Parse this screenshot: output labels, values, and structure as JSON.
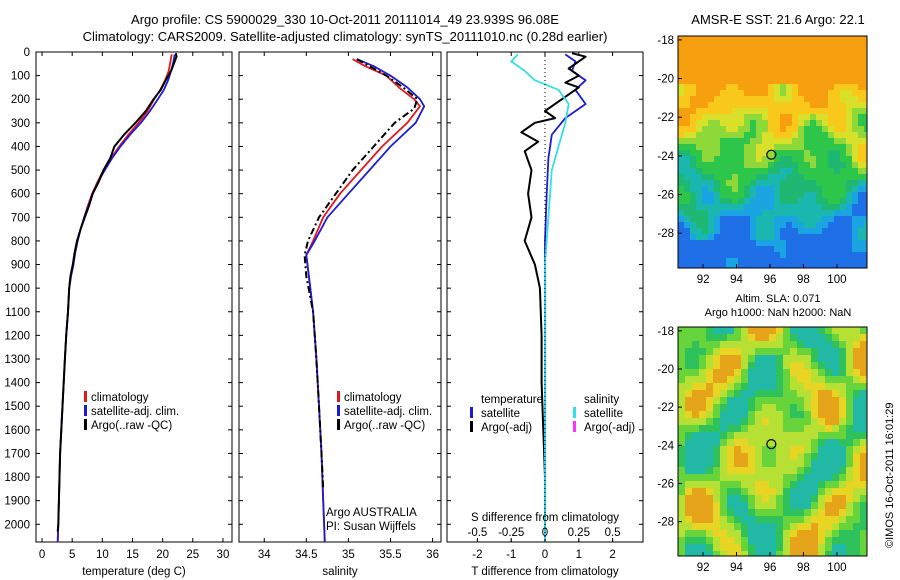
{
  "title": {
    "line1": "Argo profile: CS 5900029_330 10-Oct-2011 20111014_49 23.939S 96.08E",
    "line2": "Climatology: CARS2009. Satellite-adjusted climatology: synTS_20111010.nc (0.28d earlier)"
  },
  "colors": {
    "climatology": "#e3171c",
    "satellite": "#1c1cd6",
    "argo": "#000000",
    "salinity_satellite": "#33e0e8",
    "salinity_argo": "#ff33ff"
  },
  "depth_axis": {
    "ylim": [
      0,
      2075
    ],
    "ticks": [
      0,
      100,
      200,
      300,
      400,
      500,
      600,
      700,
      800,
      900,
      1000,
      1100,
      1200,
      1300,
      1400,
      1500,
      1600,
      1700,
      1800,
      1900,
      2000
    ]
  },
  "chart_data": [
    {
      "type": "line",
      "xlabel": "temperature (deg C)",
      "xlim": [
        -1,
        31.5
      ],
      "xticks": [
        0,
        5,
        10,
        15,
        20,
        25,
        30
      ],
      "legend": {
        "placement": "bottom-middle",
        "entries": [
          "climatology",
          "satellite-adj. clim.",
          "Argo(..raw -QC)"
        ]
      },
      "series": [
        {
          "name": "climatology",
          "color": "#e3171c",
          "points": [
            [
              21.5,
              10
            ],
            [
              21.3,
              40
            ],
            [
              21.0,
              80
            ],
            [
              20.4,
              120
            ],
            [
              19.6,
              160
            ],
            [
              18.6,
              200
            ],
            [
              17.5,
              250
            ],
            [
              16.0,
              300
            ],
            [
              14.3,
              350
            ],
            [
              12.8,
              400
            ],
            [
              11.4,
              450
            ],
            [
              10.2,
              500
            ],
            [
              9.2,
              550
            ],
            [
              8.3,
              600
            ],
            [
              7.6,
              650
            ],
            [
              7.0,
              700
            ],
            [
              6.4,
              750
            ],
            [
              5.9,
              800
            ],
            [
              5.5,
              850
            ],
            [
              5.2,
              900
            ],
            [
              4.8,
              950
            ],
            [
              4.5,
              1000
            ],
            [
              4.3,
              1100
            ],
            [
              4.0,
              1200
            ],
            [
              3.8,
              1300
            ],
            [
              3.6,
              1400
            ],
            [
              3.4,
              1500
            ],
            [
              3.2,
              1600
            ],
            [
              3.0,
              1700
            ],
            [
              2.9,
              1800
            ],
            [
              2.8,
              1900
            ],
            [
              2.7,
              2000
            ],
            [
              2.6,
              2075
            ]
          ]
        },
        {
          "name": "satellite-adj. clim.",
          "color": "#1c1cd6",
          "points": [
            [
              22.0,
              10
            ],
            [
              21.8,
              40
            ],
            [
              21.4,
              80
            ],
            [
              20.9,
              120
            ],
            [
              20.2,
              160
            ],
            [
              19.2,
              200
            ],
            [
              17.9,
              250
            ],
            [
              16.4,
              300
            ],
            [
              14.6,
              350
            ],
            [
              13.0,
              400
            ],
            [
              11.6,
              450
            ],
            [
              10.4,
              500
            ],
            [
              9.3,
              550
            ],
            [
              8.4,
              600
            ],
            [
              7.7,
              650
            ],
            [
              7.0,
              700
            ],
            [
              6.4,
              750
            ],
            [
              5.9,
              800
            ],
            [
              5.5,
              850
            ],
            [
              5.2,
              900
            ],
            [
              4.8,
              950
            ],
            [
              4.5,
              1000
            ],
            [
              4.3,
              1100
            ],
            [
              4.0,
              1200
            ],
            [
              3.8,
              1300
            ],
            [
              3.6,
              1400
            ],
            [
              3.4,
              1500
            ],
            [
              3.2,
              1600
            ],
            [
              3.0,
              1700
            ],
            [
              2.9,
              1800
            ],
            [
              2.8,
              1900
            ],
            [
              2.7,
              2000
            ],
            [
              2.6,
              2075
            ]
          ]
        },
        {
          "name": "Argo(..raw -QC)",
          "color": "#000000",
          "points": [
            [
              22.2,
              5
            ],
            [
              22.3,
              20
            ],
            [
              22.0,
              40
            ],
            [
              21.4,
              80
            ],
            [
              20.5,
              120
            ],
            [
              19.7,
              160
            ],
            [
              18.5,
              200
            ],
            [
              17.2,
              250
            ],
            [
              15.5,
              300
            ],
            [
              13.6,
              350
            ],
            [
              12.0,
              400
            ],
            [
              11.3,
              450
            ],
            [
              10.2,
              500
            ],
            [
              9.4,
              550
            ],
            [
              8.4,
              600
            ],
            [
              7.8,
              650
            ],
            [
              7.1,
              700
            ],
            [
              6.4,
              750
            ],
            [
              5.8,
              800
            ],
            [
              5.4,
              850
            ],
            [
              5.1,
              900
            ],
            [
              4.7,
              950
            ],
            [
              4.5,
              1000
            ],
            [
              4.3,
              1100
            ],
            [
              4.0,
              1200
            ],
            [
              3.8,
              1300
            ],
            [
              3.6,
              1400
            ],
            [
              3.4,
              1500
            ],
            [
              3.2,
              1600
            ],
            [
              3.0,
              1700
            ],
            [
              2.9,
              1800
            ],
            [
              2.8,
              1900
            ],
            [
              2.7,
              2000
            ],
            [
              2.6,
              2030
            ]
          ]
        }
      ]
    },
    {
      "type": "line",
      "xlabel": "salinity",
      "xlim": [
        33.7,
        36.1
      ],
      "xticks": [
        34,
        34.5,
        35,
        35.5,
        36
      ],
      "legend": {
        "placement": "bottom-middle",
        "entries": [
          "climatology",
          "satellite-adj. clim.",
          "Argo(..raw -QC)"
        ]
      },
      "annotation": [
        "Argo AUSTRALIA",
        "PI: Susan Wijffels"
      ],
      "series": [
        {
          "name": "climatology",
          "color": "#e3171c",
          "points": [
            [
              35.05,
              30
            ],
            [
              35.2,
              60
            ],
            [
              35.45,
              100
            ],
            [
              35.6,
              150
            ],
            [
              35.78,
              200
            ],
            [
              35.85,
              230
            ],
            [
              35.7,
              300
            ],
            [
              35.4,
              400
            ],
            [
              35.15,
              500
            ],
            [
              34.9,
              600
            ],
            [
              34.7,
              700
            ],
            [
              34.58,
              800
            ],
            [
              34.5,
              860
            ],
            [
              34.53,
              950
            ],
            [
              34.58,
              1100
            ],
            [
              34.62,
              1300
            ],
            [
              34.65,
              1500
            ],
            [
              34.68,
              1700
            ],
            [
              34.7,
              1900
            ],
            [
              34.72,
              2075
            ]
          ]
        },
        {
          "name": "satellite-adj. clim.",
          "color": "#1c1cd6",
          "points": [
            [
              35.1,
              30
            ],
            [
              35.3,
              60
            ],
            [
              35.5,
              100
            ],
            [
              35.7,
              150
            ],
            [
              35.85,
              200
            ],
            [
              35.9,
              230
            ],
            [
              35.8,
              300
            ],
            [
              35.5,
              400
            ],
            [
              35.25,
              500
            ],
            [
              35.0,
              600
            ],
            [
              34.75,
              700
            ],
            [
              34.6,
              800
            ],
            [
              34.5,
              860
            ],
            [
              34.53,
              950
            ],
            [
              34.58,
              1100
            ],
            [
              34.62,
              1300
            ],
            [
              34.65,
              1500
            ],
            [
              34.68,
              1700
            ],
            [
              34.7,
              1900
            ],
            [
              34.72,
              2075
            ]
          ]
        },
        {
          "name": "Argo(..raw -QC)",
          "color": "#000000",
          "points": [
            [
              35.1,
              30
            ],
            [
              35.25,
              60
            ],
            [
              35.45,
              100
            ],
            [
              35.65,
              150
            ],
            [
              35.82,
              200
            ],
            [
              35.78,
              240
            ],
            [
              35.55,
              300
            ],
            [
              35.3,
              400
            ],
            [
              35.05,
              500
            ],
            [
              34.85,
              600
            ],
            [
              34.65,
              700
            ],
            [
              34.52,
              800
            ],
            [
              34.48,
              860
            ],
            [
              34.5,
              950
            ],
            [
              34.58,
              1100
            ],
            [
              34.62,
              1300
            ],
            [
              34.65,
              1500
            ],
            [
              34.68,
              1700
            ],
            [
              34.7,
              1850
            ]
          ]
        }
      ]
    },
    {
      "type": "line",
      "xlabel": "T difference from climatology",
      "xlim": [
        -2.9,
        2.9
      ],
      "xticks": [
        -2,
        -1,
        0,
        1,
        2
      ],
      "secondary_axis": {
        "label": "S difference from climatology",
        "ticks": [
          -0.5,
          -0.25,
          0,
          0.25,
          0.5
        ]
      },
      "legend": {
        "placement": "bottom",
        "entries": [
          "temperature",
          "satellite",
          "Argo(-adj)",
          "salinity",
          "satellite",
          "Argo(-adj)"
        ]
      },
      "series": [
        {
          "name": "satellite",
          "color": "#1c1cd6",
          "points": [
            [
              0.6,
              10
            ],
            [
              0.9,
              40
            ],
            [
              0.8,
              80
            ],
            [
              1.2,
              120
            ],
            [
              0.9,
              160
            ],
            [
              1.2,
              220
            ],
            [
              0.6,
              280
            ],
            [
              0.2,
              350
            ],
            [
              0.1,
              450
            ],
            [
              0.05,
              600
            ],
            [
              0.0,
              800
            ],
            [
              0.0,
              1100
            ],
            [
              0.0,
              1500
            ],
            [
              0.0,
              2075
            ]
          ]
        },
        {
          "name": "Argo(-adj)",
          "color": "#000000",
          "points": [
            [
              0.8,
              5
            ],
            [
              1.2,
              20
            ],
            [
              1.0,
              40
            ],
            [
              0.7,
              70
            ],
            [
              1.0,
              100
            ],
            [
              0.6,
              130
            ],
            [
              1.0,
              150
            ],
            [
              0.5,
              200
            ],
            [
              0.0,
              250
            ],
            [
              0.3,
              280
            ],
            [
              -0.3,
              300
            ],
            [
              -0.7,
              340
            ],
            [
              -0.2,
              380
            ],
            [
              -0.6,
              420
            ],
            [
              -0.4,
              500
            ],
            [
              -0.5,
              600
            ],
            [
              -0.4,
              700
            ],
            [
              -0.6,
              800
            ],
            [
              -0.3,
              900
            ],
            [
              -0.15,
              1000
            ],
            [
              -0.1,
              1200
            ],
            [
              -0.1,
              1400
            ],
            [
              -0.05,
              1600
            ],
            [
              0.0,
              1800
            ],
            [
              0.0,
              2030
            ]
          ]
        },
        {
          "name": "salinity satellite",
          "color": "#33e0e8",
          "points": [
            [
              -0.8,
              10
            ],
            [
              -1.0,
              40
            ],
            [
              -0.6,
              80
            ],
            [
              -0.3,
              120
            ],
            [
              0.4,
              160
            ],
            [
              0.7,
              220
            ],
            [
              0.6,
              300
            ],
            [
              0.4,
              400
            ],
            [
              0.2,
              500
            ],
            [
              0.1,
              700
            ],
            [
              0.0,
              900
            ],
            [
              0.0,
              1200
            ],
            [
              0.0,
              1500
            ],
            [
              0.0,
              2075
            ]
          ]
        }
      ]
    }
  ],
  "maps": [
    {
      "title": "AMSR-E SST: 21.6 Argo: 22.1",
      "xticks": [
        92,
        94,
        96,
        98,
        100
      ],
      "yticks": [
        -18,
        -20,
        -22,
        -24,
        -26,
        -28
      ],
      "xlim": [
        90.5,
        101.8
      ],
      "ylim": [
        -29.8,
        -17.8
      ],
      "marker": [
        96.08,
        -23.939
      ]
    },
    {
      "title_lines": [
        "Altim. SLA: 0.071",
        "Argo h1000: NaN h2000: NaN"
      ],
      "xticks": [
        92,
        94,
        96,
        98,
        100
      ],
      "yticks": [
        -18,
        -20,
        -22,
        -24,
        -26,
        -28
      ],
      "xlim": [
        90.5,
        101.8
      ],
      "ylim": [
        -29.8,
        -17.8
      ],
      "marker": [
        96.08,
        -23.939
      ]
    }
  ],
  "footer": "©IMOS 16-Oct-2011 16:01:29"
}
